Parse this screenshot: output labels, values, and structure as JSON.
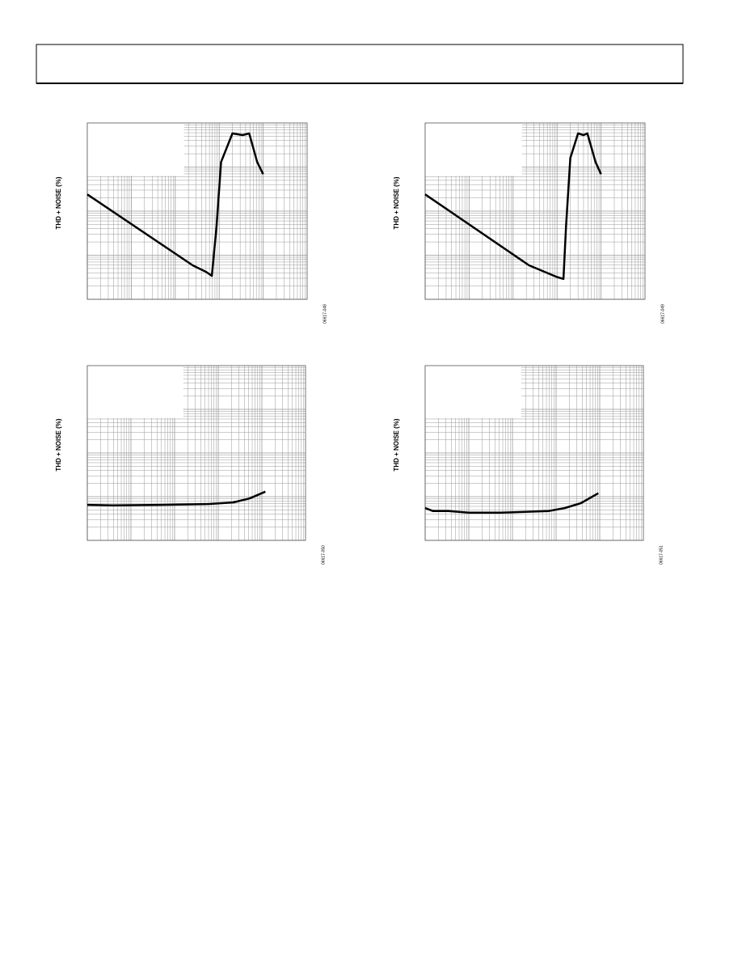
{
  "chart_data": [
    {
      "type": "line",
      "y_label": "THD + NOISE (%)",
      "figure_code": "06617-048",
      "log_x": true,
      "log_y": true,
      "grid": true,
      "xlim": [
        0.001,
        100
      ],
      "ylim": [
        0.001,
        10
      ],
      "x": [
        0.001,
        0.25,
        0.5,
        0.68,
        0.87,
        1.1,
        2,
        3.4,
        4.8,
        7.3,
        10
      ],
      "series": [
        {
          "color": "#000000",
          "values": [
            0.24,
            0.0059,
            0.0042,
            0.0034,
            0.045,
            1.3,
            5.8,
            5.3,
            5.8,
            1.3,
            0.69
          ]
        }
      ]
    },
    {
      "type": "line",
      "y_label": "THD + NOISE (%)",
      "figure_code": "06617-049",
      "log_x": true,
      "log_y": true,
      "grid": true,
      "xlim": [
        0.001,
        100
      ],
      "ylim": [
        0.001,
        10
      ],
      "x": [
        0.001,
        0.23,
        1.0,
        1.4,
        1.6,
        2.0,
        3.0,
        4.0,
        4.9,
        7.5,
        10
      ],
      "series": [
        {
          "color": "#000000",
          "values": [
            0.24,
            0.0059,
            0.0032,
            0.0029,
            0.045,
            1.6,
            5.8,
            5.3,
            5.8,
            1.3,
            0.69
          ]
        }
      ]
    },
    {
      "type": "line",
      "y_label": "THD + NOISE (%)",
      "figure_code": "06617-050",
      "log_x": true,
      "log_y": true,
      "grid": true,
      "xlim": [
        0.001,
        100
      ],
      "ylim": [
        0.001,
        10
      ],
      "x": [
        0.001,
        0.0039,
        0.049,
        0.62,
        2.2,
        5.2,
        12
      ],
      "series": [
        {
          "color": "#000000",
          "values": [
            0.0065,
            0.0063,
            0.0065,
            0.0068,
            0.0074,
            0.0091,
            0.013
          ]
        }
      ]
    },
    {
      "type": "line",
      "y_label": "THD + NOISE (%)",
      "figure_code": "06617-051",
      "log_x": true,
      "log_y": true,
      "grid": true,
      "xlim": [
        0.001,
        100
      ],
      "ylim": [
        0.001,
        10
      ],
      "x": [
        0.001,
        0.0015,
        0.0034,
        0.01,
        0.054,
        0.68,
        1.6,
        3.7,
        9.3
      ],
      "series": [
        {
          "color": "#000000",
          "values": [
            0.0055,
            0.0047,
            0.0047,
            0.0043,
            0.0043,
            0.0047,
            0.0055,
            0.0071,
            0.012
          ]
        }
      ]
    }
  ]
}
